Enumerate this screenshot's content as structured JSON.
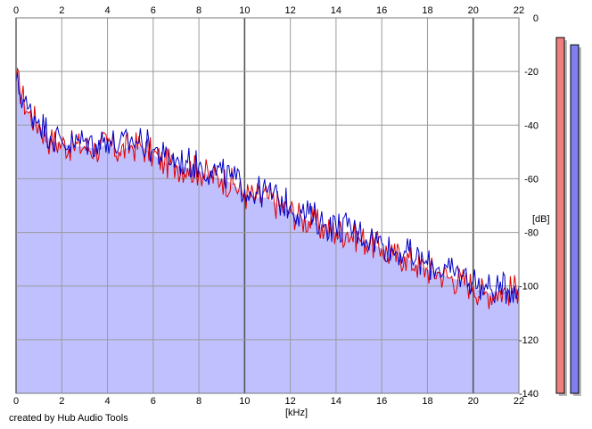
{
  "chart_data": {
    "type": "line",
    "xlabel": "[kHz]",
    "ylabel": "[dB]",
    "xlim": [
      0,
      22
    ],
    "ylim": [
      -140,
      0
    ],
    "x_ticks": [
      "0",
      "2",
      "4",
      "6",
      "8",
      "10",
      "12",
      "14",
      "16",
      "18",
      "20",
      "22"
    ],
    "y_ticks": [
      "0",
      "-20",
      "-40",
      "-60",
      "-80",
      "-100",
      "-120",
      "-140"
    ],
    "grid": true,
    "series": [
      {
        "color": "#e00000",
        "x": [
          0,
          0.5,
          1,
          1.5,
          2,
          2.5,
          3,
          3.5,
          4,
          4.5,
          5,
          5.5,
          6,
          6.5,
          7,
          7.5,
          8,
          8.5,
          9,
          9.5,
          10,
          10.5,
          11,
          11.5,
          12,
          12.5,
          13,
          13.5,
          14,
          14.5,
          15,
          15.5,
          16,
          16.5,
          17,
          17.5,
          18,
          18.5,
          19,
          19.5,
          20,
          20.5,
          21,
          21.5,
          22
        ],
        "values": [
          -22,
          -35,
          -40,
          -46,
          -47,
          -48,
          -48,
          -49,
          -47,
          -50,
          -48,
          -48,
          -51,
          -54,
          -55,
          -56,
          -57,
          -59,
          -60,
          -62,
          -66,
          -67,
          -67,
          -70,
          -72,
          -75,
          -76,
          -79,
          -80,
          -80,
          -82,
          -84,
          -86,
          -89,
          -89,
          -92,
          -94,
          -95,
          -97,
          -98,
          -100,
          -103,
          -102,
          -102,
          -101
        ]
      },
      {
        "color": "#0000c8",
        "x": [
          0,
          0.5,
          1,
          1.5,
          2,
          2.5,
          3,
          3.5,
          4,
          4.5,
          5,
          5.5,
          6,
          6.5,
          7,
          7.5,
          8,
          8.5,
          9,
          9.5,
          10,
          10.5,
          11,
          11.5,
          12,
          12.5,
          13,
          13.5,
          14,
          14.5,
          15,
          15.5,
          16,
          16.5,
          17,
          17.5,
          18,
          18.5,
          19,
          19.5,
          20,
          20.5,
          21,
          21.5,
          22
        ],
        "values": [
          -24,
          -34,
          -38,
          -44,
          -46,
          -47,
          -46,
          -47,
          -45,
          -48,
          -46,
          -46,
          -49,
          -52,
          -53,
          -54,
          -55,
          -57,
          -58,
          -60,
          -64,
          -65,
          -65,
          -68,
          -70,
          -73,
          -74,
          -77,
          -78,
          -78,
          -80,
          -82,
          -84,
          -87,
          -87,
          -90,
          -92,
          -93,
          -95,
          -96,
          -98,
          -101,
          -101,
          -101,
          -100
        ]
      }
    ],
    "fill_color": "#c0c0ff",
    "meters": [
      {
        "color": "#ef7f7f",
        "level": 0.98
      },
      {
        "color": "#7f7fef",
        "level": 0.96
      }
    ]
  },
  "footer": {
    "credit": "created by Hub Audio Tools"
  }
}
